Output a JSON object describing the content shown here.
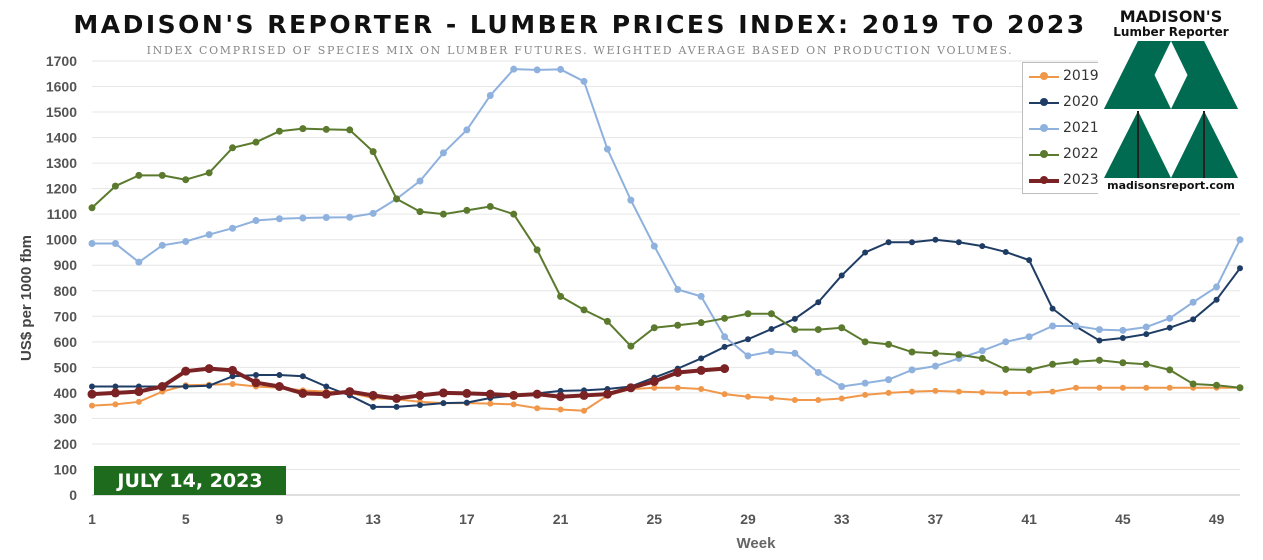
{
  "header": {
    "title": "MADISON'S REPORTER - LUMBER PRICES INDEX: 2019 TO 2023",
    "subtitle": "INDEX COMPRISED OF SPECIES MIX ON LUMBER FUTURES. WEIGHTED AVERAGE BASED ON PRODUCTION VOLUMES."
  },
  "logo": {
    "name": "MADISON'S",
    "sub": "Lumber Reporter",
    "url": "madisonsreport.com",
    "color": "#006b50"
  },
  "badge": {
    "text": "JULY 14, 2023",
    "color": "#1e6b1e"
  },
  "chart_data": {
    "type": "line",
    "title": "MADISON'S REPORTER - LUMBER PRICES INDEX: 2019 TO 2023",
    "subtitle": "INDEX COMPRISED OF SPECIES MIX ON LUMBER FUTURES. WEIGHTED AVERAGE BASED ON PRODUCTION VOLUMES.",
    "xlabel": "Week",
    "ylabel": "US$ per 1000 fbm",
    "xlim": [
      1,
      50
    ],
    "ylim": [
      0,
      1700
    ],
    "ystep": 100,
    "xticks": [
      1,
      5,
      9,
      13,
      17,
      21,
      25,
      29,
      33,
      37,
      41,
      45,
      49
    ],
    "grid": "horizontal",
    "legend": "top-right",
    "series": [
      {
        "name": "2019",
        "color": "#f0974a",
        "width": 2,
        "marker": 6,
        "values": [
          350,
          355,
          365,
          405,
          430,
          432,
          435,
          425,
          420,
          410,
          405,
          400,
          380,
          375,
          365,
          360,
          360,
          358,
          355,
          340,
          335,
          330,
          390,
          415,
          420,
          420,
          415,
          395,
          385,
          380,
          372,
          372,
          378,
          392,
          400,
          405,
          408,
          405,
          402,
          400,
          400,
          405,
          420,
          420,
          420,
          420,
          420,
          420,
          420,
          420
        ]
      },
      {
        "name": "2020",
        "color": "#1f3c64",
        "width": 2,
        "marker": 6,
        "values": [
          425,
          425,
          425,
          425,
          425,
          428,
          465,
          470,
          470,
          465,
          425,
          390,
          345,
          345,
          352,
          360,
          362,
          380,
          390,
          398,
          408,
          410,
          415,
          425,
          460,
          495,
          535,
          580,
          610,
          650,
          690,
          755,
          860,
          950,
          990,
          990,
          1000,
          990,
          975,
          952,
          920,
          730,
          660,
          605,
          615,
          630,
          655,
          688,
          765,
          888
        ]
      },
      {
        "name": "2021",
        "color": "#8fb1de",
        "width": 2,
        "marker": 7,
        "values": [
          985,
          985,
          912,
          978,
          993,
          1020,
          1045,
          1075,
          1082,
          1085,
          1087,
          1088,
          1103,
          1160,
          1230,
          1340,
          1430,
          1565,
          1668,
          1665,
          1667,
          1620,
          1355,
          1155,
          975,
          805,
          778,
          620,
          545,
          562,
          555,
          480,
          425,
          438,
          452,
          490,
          505,
          535,
          565,
          600,
          620,
          662,
          662,
          648,
          645,
          658,
          692,
          755,
          815,
          1000
        ]
      },
      {
        "name": "2022",
        "color": "#5b7a2e",
        "width": 2,
        "marker": 7,
        "values": [
          1125,
          1210,
          1252,
          1252,
          1235,
          1262,
          1360,
          1382,
          1425,
          1435,
          1432,
          1430,
          1345,
          1160,
          1110,
          1100,
          1115,
          1130,
          1100,
          960,
          778,
          725,
          680,
          583,
          655,
          665,
          675,
          692,
          710,
          710,
          648,
          648,
          655,
          600,
          590,
          560,
          555,
          550,
          535,
          492,
          490,
          512,
          522,
          528,
          518,
          512,
          490,
          435,
          430,
          420
        ]
      },
      {
        "name": "2023",
        "color": "#7a2224",
        "width": 4,
        "marker": 9,
        "values": [
          395,
          400,
          405,
          425,
          485,
          495,
          488,
          440,
          425,
          398,
          395,
          405,
          390,
          378,
          390,
          400,
          398,
          395,
          390,
          395,
          385,
          390,
          395,
          420,
          445,
          480,
          488,
          495
        ]
      }
    ]
  }
}
